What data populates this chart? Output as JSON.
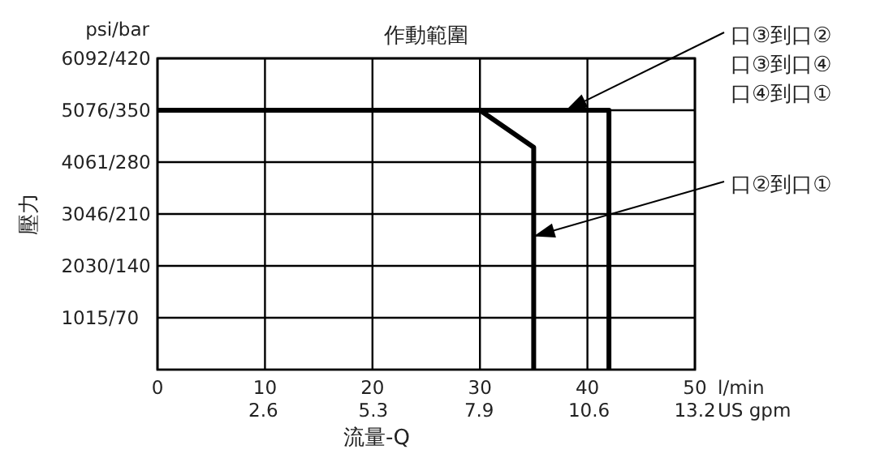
{
  "chart_data": {
    "type": "line",
    "title": "作動範圍",
    "xlabel": "流量-Q",
    "ylabel": "壓力",
    "x2label": "US gpm",
    "xlim": [
      0,
      50
    ],
    "xticks": [
      0,
      10,
      20,
      30,
      40,
      50
    ],
    "x2lim": [
      0,
      13.2
    ],
    "x2ticks": [
      2.6,
      5.3,
      7.9,
      10.6,
      13.2
    ],
    "ylim": [
      0,
      6092
    ],
    "yticks": [
      1015,
      2030,
      3046,
      4061,
      5076,
      6092
    ],
    "y2lim": [
      0,
      420
    ],
    "y2ticks": [
      {
        "value": 70,
        "label": "/70"
      },
      {
        "value": 140,
        "label": "/140"
      },
      {
        "value": 210,
        "label": "/210"
      },
      {
        "value": 280,
        "label": "/280"
      },
      {
        "value": 350,
        "label": "/350"
      },
      {
        "value": 420,
        "label": "/420"
      }
    ],
    "grid": true,
    "line_style": "solid",
    "series": [
      {
        "color": "#000000",
        "axis": "y2",
        "x": [
          0,
          42,
          42
        ],
        "values": [
          350,
          350,
          0
        ]
      },
      {
        "color": "#000000",
        "axis": "y2",
        "x": [
          0,
          30,
          35,
          35
        ],
        "values": [
          350,
          350,
          300,
          0
        ]
      }
    ],
    "annotations": [
      {
        "text": "口③到口②",
        "x": 38,
        "y": 5076
      },
      "口③到口④",
      "口④到口①",
      {
        "text": "口②到口①",
        "x": 35,
        "y": 2610
      },
      "psi/bar",
      "l/min"
    ]
  }
}
